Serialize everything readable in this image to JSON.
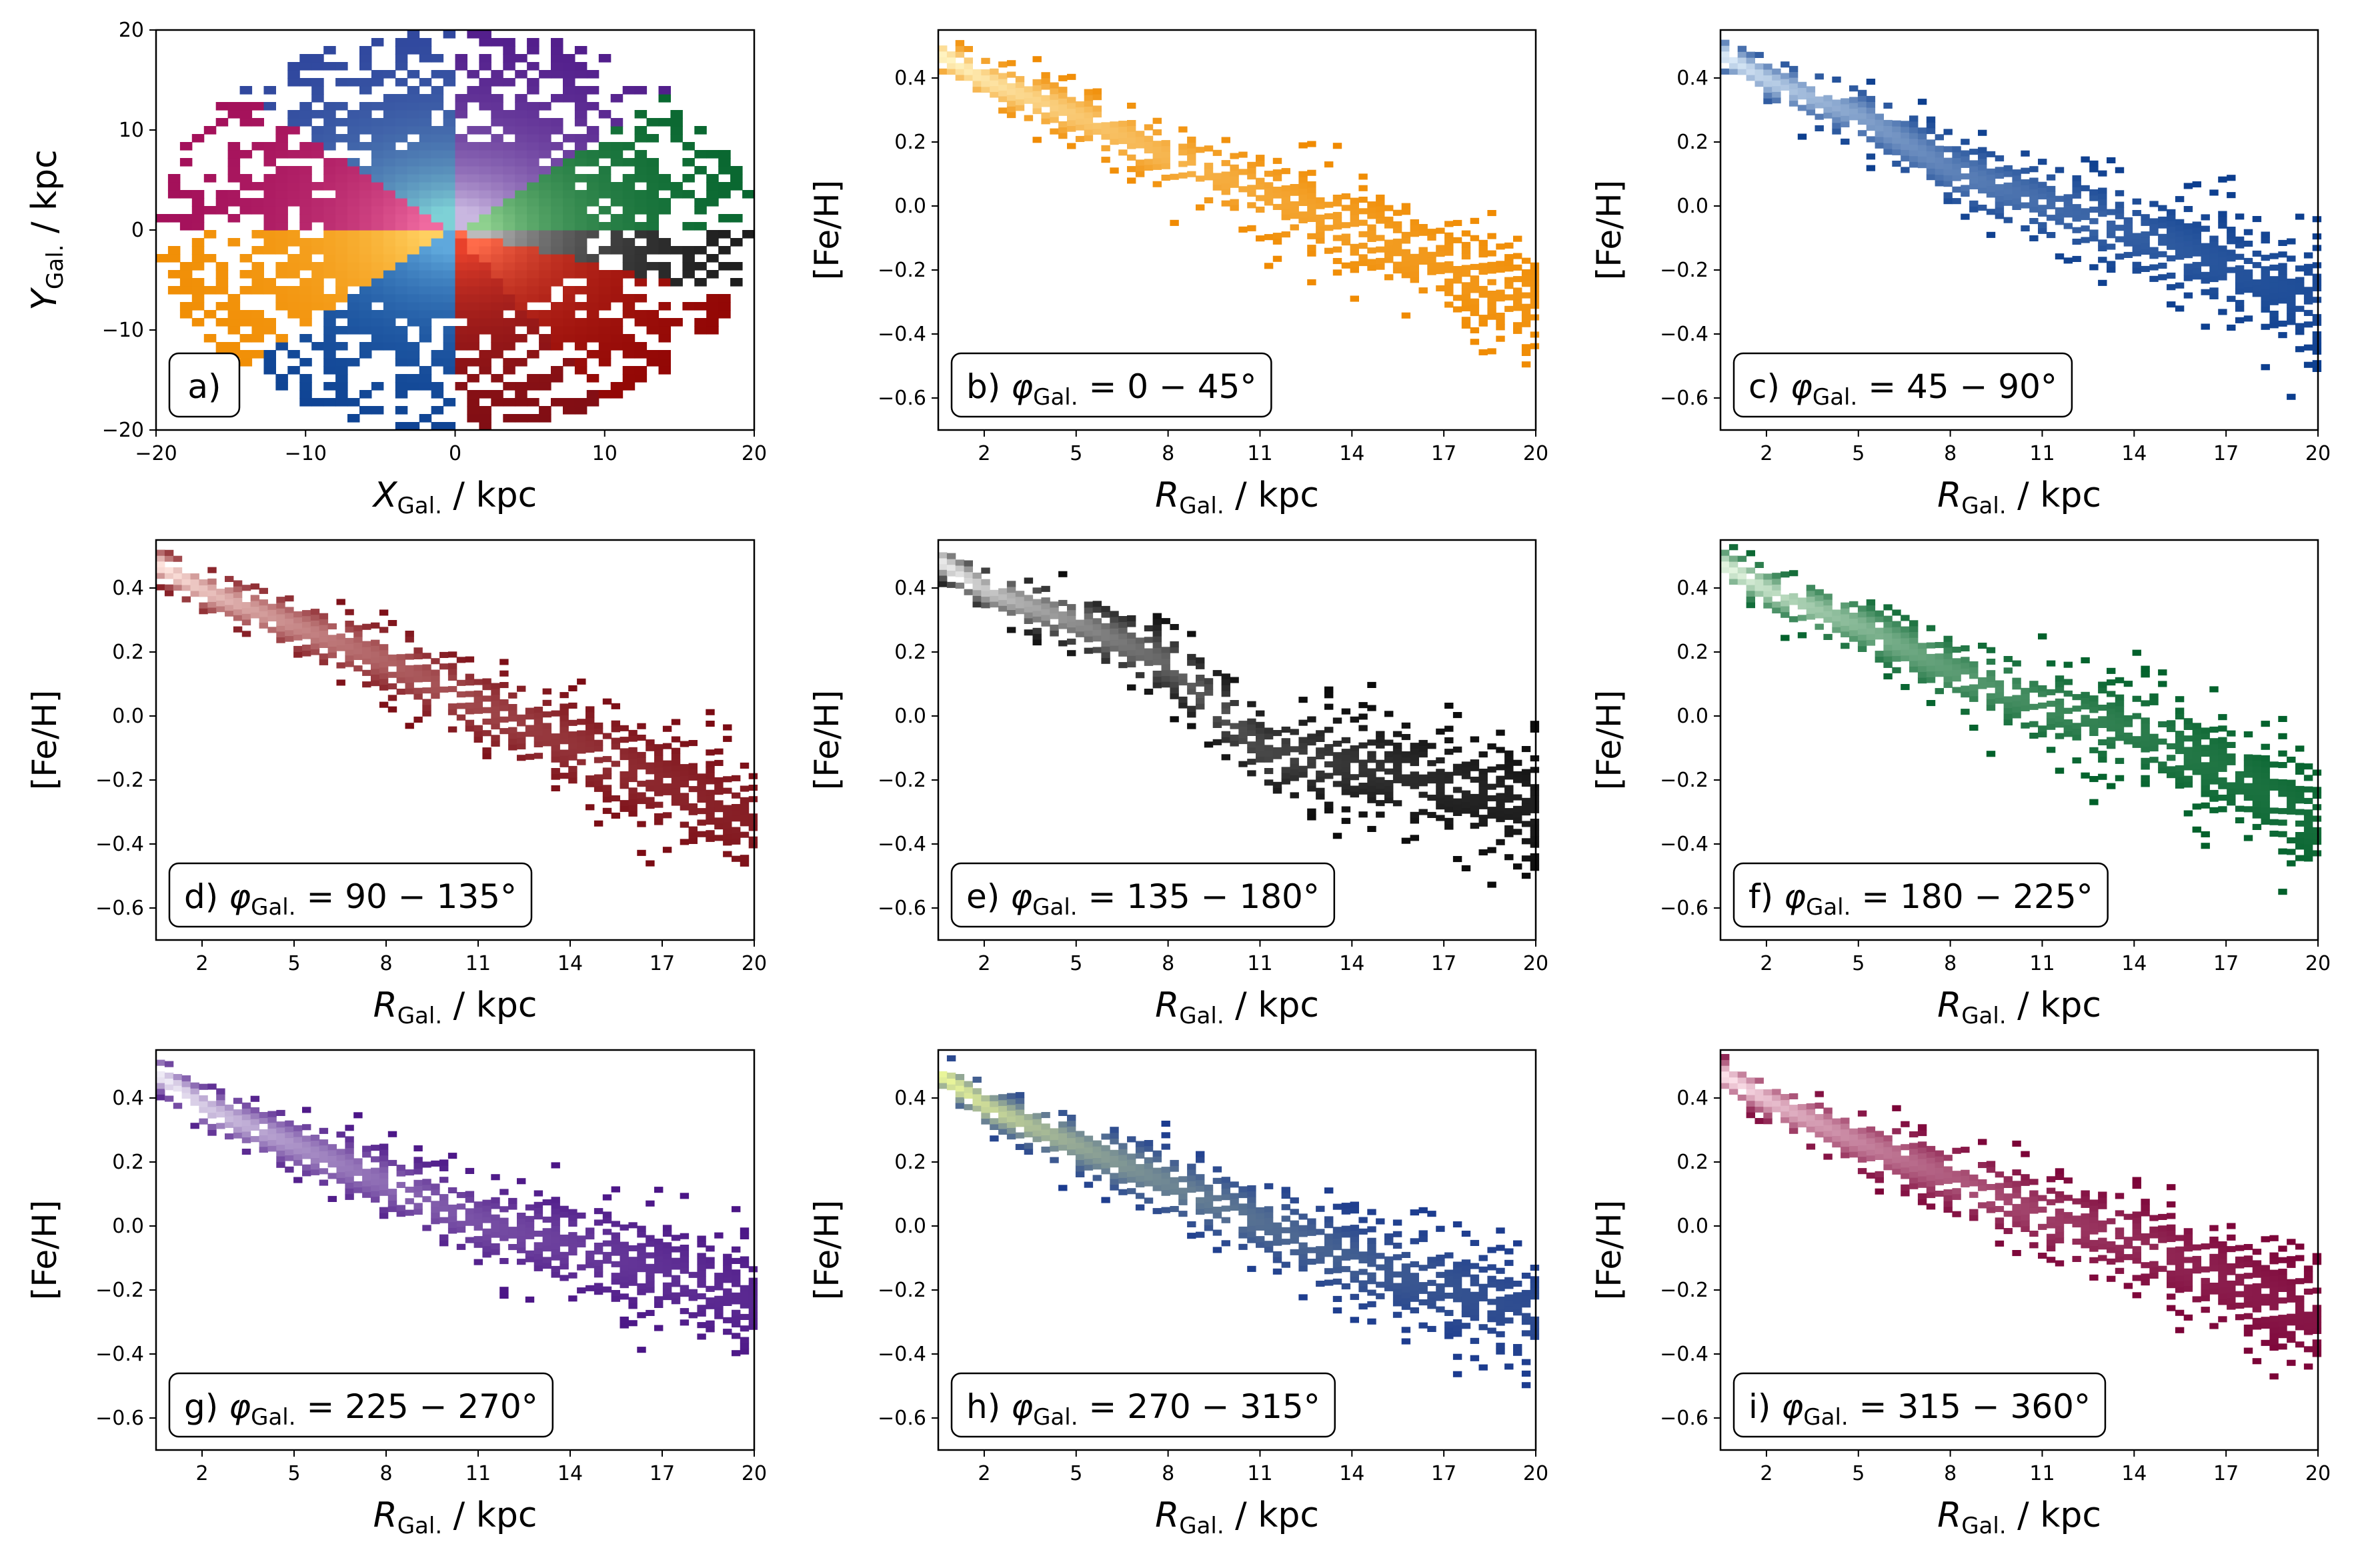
{
  "figure": {
    "panels": [
      {
        "id": "a",
        "label": "a)",
        "xlabel": {
          "main": "X",
          "sub": "Gal.",
          "unit": " / kpc"
        },
        "ylabel": {
          "main": "Y",
          "sub": "Gal.",
          "unit": " / kpc"
        },
        "xticks": [
          -20,
          -10,
          0,
          10,
          20
        ],
        "yticks": [
          -20,
          -10,
          0,
          10,
          20
        ]
      },
      {
        "id": "b",
        "label_prefix": "b) ",
        "phi": "= 0 − 45°",
        "xlabel": {
          "main": "R",
          "sub": "Gal.",
          "unit": " / kpc"
        },
        "ylabel": "[Fe/H]",
        "xticks": [
          2,
          5,
          8,
          11,
          14,
          17,
          20
        ],
        "yticks": [
          "0.4",
          "0.2",
          "0.0",
          "−0.2",
          "−0.4",
          "−0.6"
        ]
      },
      {
        "id": "c",
        "label_prefix": "c) ",
        "phi": "= 45 − 90°",
        "xlabel": {
          "main": "R",
          "sub": "Gal.",
          "unit": " / kpc"
        },
        "ylabel": "[Fe/H]",
        "xticks": [
          2,
          5,
          8,
          11,
          14,
          17,
          20
        ],
        "yticks": [
          "0.4",
          "0.2",
          "0.0",
          "−0.2",
          "−0.4",
          "−0.6"
        ]
      },
      {
        "id": "d",
        "label_prefix": "d) ",
        "phi": "= 90 − 135°",
        "xlabel": {
          "main": "R",
          "sub": "Gal.",
          "unit": " / kpc"
        },
        "ylabel": "[Fe/H]",
        "xticks": [
          2,
          5,
          8,
          11,
          14,
          17,
          20
        ],
        "yticks": [
          "0.4",
          "0.2",
          "0.0",
          "−0.2",
          "−0.4",
          "−0.6"
        ]
      },
      {
        "id": "e",
        "label_prefix": "e) ",
        "phi": "= 135 − 180°",
        "xlabel": {
          "main": "R",
          "sub": "Gal.",
          "unit": " / kpc"
        },
        "ylabel": "[Fe/H]",
        "xticks": [
          2,
          5,
          8,
          11,
          14,
          17,
          20
        ],
        "yticks": [
          "0.4",
          "0.2",
          "0.0",
          "−0.2",
          "−0.4",
          "−0.6"
        ]
      },
      {
        "id": "f",
        "label_prefix": "f) ",
        "phi": "= 180 − 225°",
        "xlabel": {
          "main": "R",
          "sub": "Gal.",
          "unit": " / kpc"
        },
        "ylabel": "[Fe/H]",
        "xticks": [
          2,
          5,
          8,
          11,
          14,
          17,
          20
        ],
        "yticks": [
          "0.4",
          "0.2",
          "0.0",
          "−0.2",
          "−0.4",
          "−0.6"
        ]
      },
      {
        "id": "g",
        "label_prefix": "g) ",
        "phi": "= 225 − 270°",
        "xlabel": {
          "main": "R",
          "sub": "Gal.",
          "unit": " / kpc"
        },
        "ylabel": "[Fe/H]",
        "xticks": [
          2,
          5,
          8,
          11,
          14,
          17,
          20
        ],
        "yticks": [
          "0.4",
          "0.2",
          "0.0",
          "−0.2",
          "−0.4",
          "−0.6"
        ]
      },
      {
        "id": "h",
        "label_prefix": "h) ",
        "phi": "= 270 − 315°",
        "xlabel": {
          "main": "R",
          "sub": "Gal.",
          "unit": " / kpc"
        },
        "ylabel": "[Fe/H]",
        "xticks": [
          2,
          5,
          8,
          11,
          14,
          17,
          20
        ],
        "yticks": [
          "0.4",
          "0.2",
          "0.0",
          "−0.2",
          "−0.4",
          "−0.6"
        ]
      },
      {
        "id": "i",
        "label_prefix": "i) ",
        "phi": "= 315 − 360°",
        "xlabel": {
          "main": "R",
          "sub": "Gal.",
          "unit": " / kpc"
        },
        "ylabel": "[Fe/H]",
        "xticks": [
          2,
          5,
          8,
          11,
          14,
          17,
          20
        ],
        "yticks": [
          "0.4",
          "0.2",
          "0.0",
          "−0.2",
          "−0.4",
          "−0.6"
        ]
      }
    ],
    "phi_symbol": "φ",
    "phi_sub": "Gal."
  },
  "chart_data": [
    {
      "type": "heatmap",
      "panel": "a",
      "xlim": [
        -20,
        20
      ],
      "ylim": [
        -20,
        20
      ],
      "grid": false,
      "sectors": [
        {
          "phi_range_deg": [
            0,
            45
          ],
          "dark": "#8B0000",
          "light": "#ff6b4a"
        },
        {
          "phi_range_deg": [
            45,
            90
          ],
          "dark": "#7a0a12",
          "light": "#e8412b"
        },
        {
          "phi_range_deg": [
            90,
            135
          ],
          "dark": "#0a3d8f",
          "light": "#5fa8dc"
        },
        {
          "phi_range_deg": [
            135,
            180
          ],
          "dark": "#f08a00",
          "light": "#ffd060"
        },
        {
          "phi_range_deg": [
            180,
            225
          ],
          "dark": "#9e0a55",
          "light": "#f06aa0"
        },
        {
          "phi_range_deg": [
            225,
            270
          ],
          "dark": "#2b3e9a",
          "light": "#7ed1d6"
        },
        {
          "phi_range_deg": [
            270,
            315
          ],
          "dark": "#4a1486",
          "light": "#c9b7e0"
        },
        {
          "phi_range_deg": [
            315,
            360
          ],
          "dark": "#00602a",
          "light": "#8fd18f"
        },
        {
          "phi_range_deg": [
            -45,
            0
          ],
          "dark": "#111111",
          "light": "#bbbbbb"
        }
      ]
    },
    {
      "type": "heatmap",
      "panel": "b",
      "xlim": [
        0.5,
        20
      ],
      "ylim": [
        -0.7,
        0.55
      ],
      "trend": {
        "r": [
          0.5,
          2,
          5,
          8,
          11,
          14,
          17,
          20
        ],
        "feh": [
          0.46,
          0.38,
          0.27,
          0.14,
          0.03,
          -0.08,
          -0.2,
          -0.32
        ]
      },
      "colors": {
        "dark": "#f08a00",
        "light": "#fff3c0"
      }
    },
    {
      "type": "heatmap",
      "panel": "c",
      "xlim": [
        0.5,
        20
      ],
      "ylim": [
        -0.7,
        0.55
      ],
      "trend": {
        "r": [
          0.5,
          2,
          5,
          8,
          11,
          14,
          17,
          20
        ],
        "feh": [
          0.46,
          0.38,
          0.27,
          0.1,
          0.0,
          -0.1,
          -0.2,
          -0.3
        ]
      },
      "colors": {
        "dark": "#0b3d8e",
        "light": "#d8e8f6"
      }
    },
    {
      "type": "heatmap",
      "panel": "d",
      "xlim": [
        0.5,
        20
      ],
      "ylim": [
        -0.7,
        0.55
      ],
      "trend": {
        "r": [
          0.5,
          2,
          5,
          8,
          11,
          14,
          17,
          20
        ],
        "feh": [
          0.46,
          0.38,
          0.27,
          0.16,
          0.02,
          -0.1,
          -0.22,
          -0.34
        ]
      },
      "colors": {
        "dark": "#7a0a12",
        "light": "#fde2dc"
      }
    },
    {
      "type": "heatmap",
      "panel": "e",
      "xlim": [
        0.5,
        20
      ],
      "ylim": [
        -0.7,
        0.55
      ],
      "trend": {
        "r": [
          0.5,
          2,
          5,
          8,
          11,
          14,
          17,
          20
        ],
        "feh": [
          0.47,
          0.38,
          0.28,
          0.15,
          -0.12,
          -0.16,
          -0.22,
          -0.3
        ]
      },
      "colors": {
        "dark": "#0a0a0a",
        "light": "#e8e8e8"
      }
    },
    {
      "type": "heatmap",
      "panel": "f",
      "xlim": [
        0.5,
        20
      ],
      "ylim": [
        -0.7,
        0.55
      ],
      "trend": {
        "r": [
          0.5,
          2,
          5,
          8,
          11,
          14,
          17,
          20
        ],
        "feh": [
          0.46,
          0.38,
          0.27,
          0.13,
          0.02,
          -0.06,
          -0.18,
          -0.35
        ]
      },
      "colors": {
        "dark": "#00602a",
        "light": "#e2f4df"
      }
    },
    {
      "type": "heatmap",
      "panel": "g",
      "xlim": [
        0.5,
        20
      ],
      "ylim": [
        -0.7,
        0.55
      ],
      "trend": {
        "r": [
          0.5,
          2,
          5,
          8,
          11,
          14,
          17,
          20
        ],
        "feh": [
          0.46,
          0.36,
          0.24,
          0.12,
          0.0,
          -0.07,
          -0.15,
          -0.25
        ]
      },
      "colors": {
        "dark": "#4a1486",
        "light": "#eeeaf5"
      }
    },
    {
      "type": "heatmap",
      "panel": "h",
      "xlim": [
        0.5,
        20
      ],
      "ylim": [
        -0.7,
        0.55
      ],
      "trend": {
        "r": [
          0.5,
          2,
          5,
          8,
          11,
          14,
          17,
          20
        ],
        "feh": [
          0.46,
          0.36,
          0.24,
          0.12,
          0.0,
          -0.12,
          -0.2,
          -0.28
        ]
      },
      "colors": {
        "dark": "#1a3a8f",
        "light": "#e9f59a"
      }
    },
    {
      "type": "heatmap",
      "panel": "i",
      "xlim": [
        0.5,
        20
      ],
      "ylim": [
        -0.7,
        0.55
      ],
      "trend": {
        "r": [
          0.5,
          2,
          5,
          8,
          11,
          14,
          17,
          20
        ],
        "feh": [
          0.46,
          0.38,
          0.25,
          0.14,
          0.02,
          -0.06,
          -0.18,
          -0.3
        ]
      },
      "colors": {
        "dark": "#7a0035",
        "light": "#fbdfe8"
      }
    }
  ]
}
